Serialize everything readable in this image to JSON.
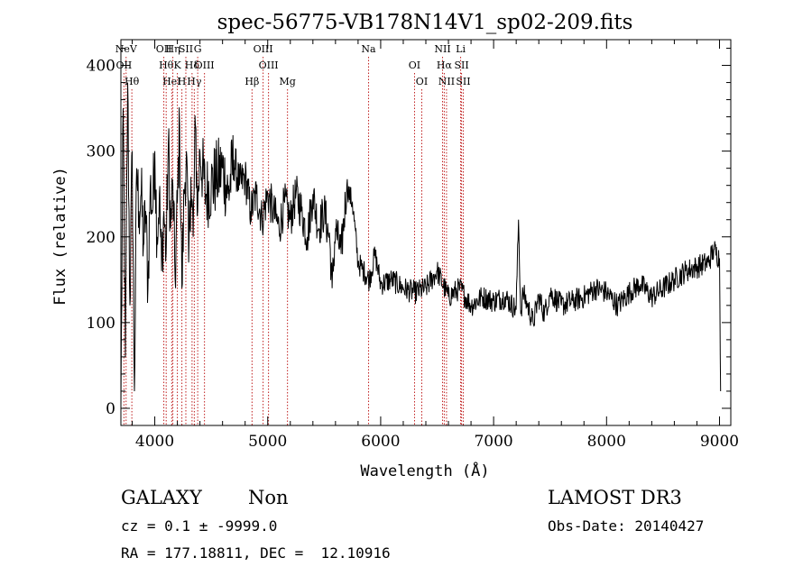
{
  "chart_data": {
    "type": "line",
    "title": "spec-56775-VB178N14V1_sp02-209.fits",
    "xlabel": "Wavelength (Å)",
    "ylabel": "Flux (relative)",
    "xlim": [
      3700,
      9100
    ],
    "ylim": [
      -20,
      430
    ],
    "xticks": [
      4000,
      5000,
      6000,
      7000,
      8000,
      9000
    ],
    "yticks": [
      0,
      100,
      200,
      300,
      400
    ],
    "x": [
      3700,
      3720,
      3740,
      3760,
      3780,
      3800,
      3820,
      3840,
      3860,
      3880,
      3900,
      3920,
      3940,
      3960,
      3980,
      4000,
      4020,
      4040,
      4060,
      4080,
      4100,
      4120,
      4140,
      4160,
      4180,
      4200,
      4220,
      4240,
      4260,
      4280,
      4300,
      4320,
      4340,
      4360,
      4380,
      4400,
      4450,
      4500,
      4550,
      4600,
      4650,
      4700,
      4750,
      4800,
      4850,
      4900,
      4950,
      5000,
      5050,
      5100,
      5150,
      5200,
      5250,
      5300,
      5350,
      5400,
      5450,
      5500,
      5550,
      5570,
      5600,
      5650,
      5700,
      5720,
      5750,
      5800,
      5850,
      5900,
      5950,
      6000,
      6100,
      6200,
      6300,
      6400,
      6500,
      6600,
      6700,
      6800,
      6900,
      7000,
      7100,
      7200,
      7220,
      7240,
      7260,
      7300,
      7350,
      7400,
      7450,
      7500,
      7600,
      7700,
      7800,
      7900,
      8000,
      8100,
      8200,
      8300,
      8400,
      8500,
      8600,
      8700,
      8800,
      8900,
      8950,
      9000,
      9010
    ],
    "y": [
      0,
      350,
      60,
      380,
      120,
      300,
      20,
      280,
      230,
      250,
      190,
      230,
      140,
      260,
      230,
      300,
      200,
      250,
      160,
      230,
      180,
      310,
      210,
      260,
      150,
      240,
      330,
      140,
      250,
      300,
      170,
      270,
      200,
      330,
      230,
      300,
      250,
      260,
      270,
      280,
      250,
      290,
      260,
      270,
      230,
      250,
      220,
      250,
      230,
      210,
      240,
      220,
      250,
      230,
      200,
      250,
      210,
      230,
      195,
      140,
      210,
      180,
      260,
      250,
      240,
      170,
      160,
      150,
      180,
      145,
      150,
      140,
      135,
      140,
      160,
      130,
      140,
      120,
      130,
      125,
      130,
      115,
      220,
      110,
      135,
      120,
      100,
      130,
      110,
      135,
      120,
      125,
      130,
      140,
      135,
      120,
      135,
      145,
      130,
      140,
      150,
      160,
      165,
      170,
      185,
      175,
      20
    ],
    "emission_lines": [
      {
        "label": "NeV",
        "wavelength": 3746
      },
      {
        "label": "OII",
        "wavelength": 3727
      },
      {
        "label": "Hθ",
        "wavelength": 3797
      },
      {
        "label": "OII",
        "wavelength": 4080
      },
      {
        "label": "Hθ",
        "wavelength": 4101
      },
      {
        "label": "HeI",
        "wavelength": 4150
      },
      {
        "label": "Hη",
        "wavelength": 4160
      },
      {
        "label": "K",
        "wavelength": 4200
      },
      {
        "label": "H",
        "wavelength": 4240
      },
      {
        "label": "SII",
        "wavelength": 4275
      },
      {
        "label": "Hδ",
        "wavelength": 4330
      },
      {
        "label": "Hγ",
        "wavelength": 4350
      },
      {
        "label": "G",
        "wavelength": 4380
      },
      {
        "label": "OIII",
        "wavelength": 4440
      },
      {
        "label": "Hβ",
        "wavelength": 4861
      },
      {
        "label": "OIII",
        "wavelength": 4959
      },
      {
        "label": "OIII",
        "wavelength": 5007
      },
      {
        "label": "Mg",
        "wavelength": 5175
      },
      {
        "label": "Na",
        "wavelength": 5893
      },
      {
        "label": "OI",
        "wavelength": 6300
      },
      {
        "label": "OI",
        "wavelength": 6364
      },
      {
        "label": "NII",
        "wavelength": 6548
      },
      {
        "label": "Hα",
        "wavelength": 6563
      },
      {
        "label": "NII",
        "wavelength": 6583
      },
      {
        "label": "Li",
        "wavelength": 6708
      },
      {
        "label": "SII",
        "wavelength": 6716
      },
      {
        "label": "SII",
        "wavelength": 6731
      }
    ],
    "grid": false
  },
  "info": {
    "object_class": "GALAXY",
    "subclass": "Non",
    "survey": "LAMOST DR3",
    "cz": "cz = 0.1 ± -9999.0",
    "obs_date": "Obs-Date: 20140427",
    "coords": "RA = 177.18811, DEC =  12.10916"
  },
  "colors": {
    "spectrum": "#000000",
    "line_marker": "#c02020",
    "axis": "#000000"
  }
}
